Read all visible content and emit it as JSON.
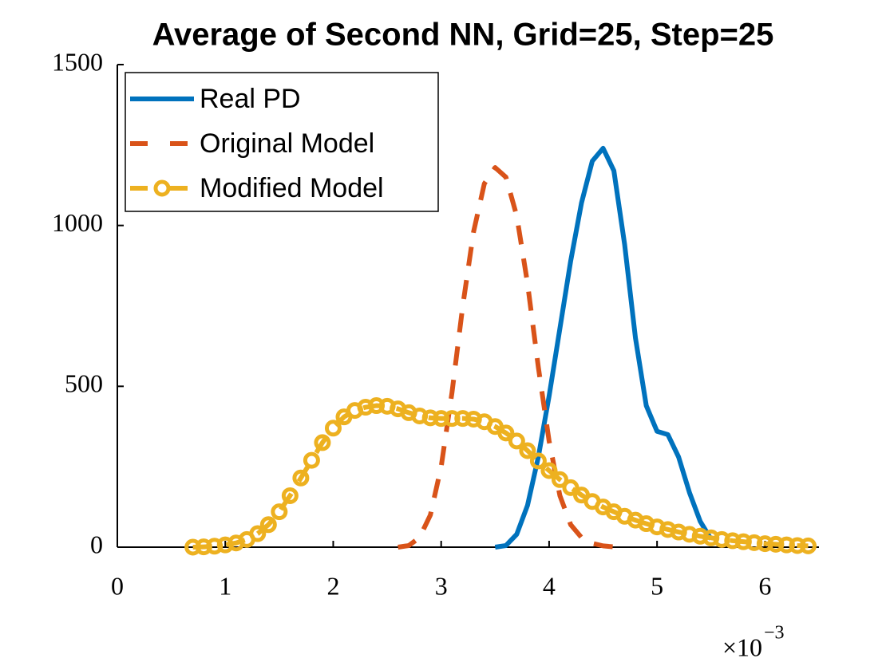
{
  "chart_data": {
    "type": "line",
    "title": "Average of Second NN, Grid=25, Step=25",
    "xlim": [
      0,
      6.5
    ],
    "ylim": [
      0,
      1500
    ],
    "xticks": [
      0,
      1,
      2,
      3,
      4,
      5,
      6
    ],
    "yticks": [
      0,
      500,
      1000,
      1500
    ],
    "x_scale_base": "×10",
    "x_scale_exponent": "−3",
    "legend": "upper left",
    "grid": false,
    "series": [
      {
        "name": "Real PD",
        "color": "#0072bd",
        "linestyle": "solid",
        "marker": "none",
        "x": [
          3.5,
          3.6,
          3.7,
          3.8,
          3.9,
          4.0,
          4.1,
          4.2,
          4.3,
          4.4,
          4.5,
          4.6,
          4.7,
          4.8,
          4.9,
          5.0,
          5.1,
          5.2,
          5.3,
          5.4,
          5.5
        ],
        "values": [
          0,
          5,
          40,
          130,
          280,
          470,
          680,
          890,
          1070,
          1200,
          1240,
          1170,
          940,
          650,
          440,
          360,
          350,
          280,
          170,
          80,
          25
        ]
      },
      {
        "name": "Original Model",
        "color": "#d95319",
        "linestyle": "dashed",
        "marker": "none",
        "x": [
          2.6,
          2.7,
          2.8,
          2.9,
          3.0,
          3.1,
          3.2,
          3.3,
          3.4,
          3.5,
          3.6,
          3.7,
          3.8,
          3.9,
          4.0,
          4.1,
          4.2,
          4.3,
          4.4,
          4.5,
          4.6,
          4.7
        ],
        "values": [
          0,
          5,
          30,
          100,
          250,
          480,
          750,
          980,
          1130,
          1180,
          1150,
          1030,
          820,
          560,
          330,
          160,
          70,
          30,
          12,
          4,
          1,
          0
        ]
      },
      {
        "name": "Modified Model",
        "color": "#edb120",
        "linestyle": "dashed",
        "marker": "o",
        "x": [
          0.7,
          0.8,
          0.9,
          1.0,
          1.1,
          1.2,
          1.3,
          1.4,
          1.5,
          1.6,
          1.7,
          1.8,
          1.9,
          2.0,
          2.1,
          2.2,
          2.3,
          2.4,
          2.5,
          2.6,
          2.7,
          2.8,
          2.9,
          3.0,
          3.1,
          3.2,
          3.3,
          3.4,
          3.5,
          3.6,
          3.7,
          3.8,
          3.9,
          4.0,
          4.1,
          4.2,
          4.3,
          4.4,
          4.5,
          4.6,
          4.7,
          4.8,
          4.9,
          5.0,
          5.1,
          5.2,
          5.3,
          5.4,
          5.5,
          5.6,
          5.7,
          5.8,
          5.9,
          6.0,
          6.1,
          6.2,
          6.3,
          6.4
        ],
        "values": [
          0,
          1,
          3,
          7,
          13,
          24,
          42,
          70,
          110,
          160,
          215,
          270,
          325,
          370,
          405,
          425,
          435,
          440,
          438,
          430,
          418,
          408,
          402,
          400,
          400,
          400,
          398,
          390,
          375,
          355,
          330,
          300,
          268,
          238,
          210,
          185,
          162,
          142,
          125,
          110,
          96,
          84,
          73,
          63,
          55,
          47,
          40,
          34,
          29,
          24,
          20,
          17,
          14,
          11,
          9,
          7,
          5,
          4
        ]
      }
    ]
  }
}
